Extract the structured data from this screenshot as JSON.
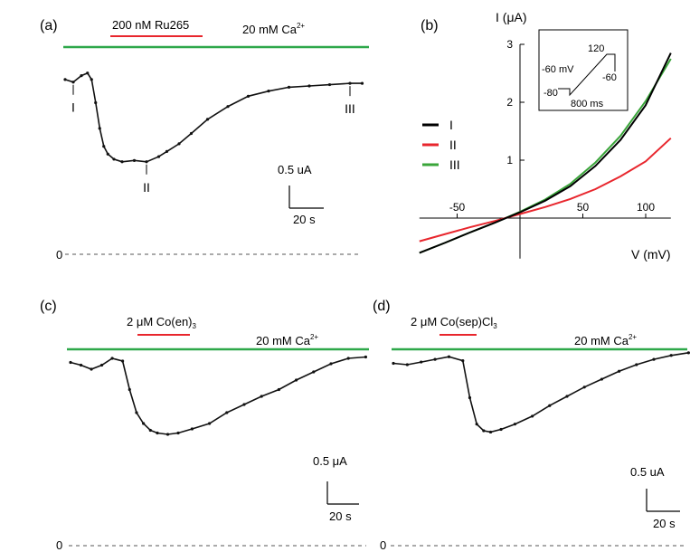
{
  "colors": {
    "trace": "#111111",
    "calcium_bar": "#2ea84a",
    "drug_bar": "#e8262d",
    "iv_I": "#000000",
    "iv_II": "#e8262d",
    "iv_III": "#3aa53a",
    "baseline": "#777777"
  },
  "panels": {
    "a": {
      "tag": "(a)",
      "drug_label": "200 nM Ru265",
      "ca_label": "20 mM Ca",
      "ca_sup": "2+",
      "markers": [
        "I",
        "II",
        "III"
      ],
      "scale_current": "0.5 uA",
      "scale_time": "20 s",
      "zero_label": "0"
    },
    "b": {
      "tag": "(b)",
      "ylabel": "I (μA)",
      "xlabel": "V (mV)",
      "legend": [
        "I",
        "II",
        "III"
      ],
      "inset": {
        "labels": [
          "120",
          "-60 mV",
          "-60",
          "-80",
          "800 ms"
        ]
      }
    },
    "c": {
      "tag": "(c)",
      "drug_label": "2 μM Co(en)",
      "drug_sub": "3",
      "ca_label": "20 mM Ca",
      "ca_sup": "2+",
      "scale_current": "0.5 μA",
      "scale_time": "20 s",
      "zero_label": "0"
    },
    "d": {
      "tag": "(d)",
      "drug_label": "2 μM Co(sep)Cl",
      "drug_sub": "3",
      "ca_label": "20 mM Ca",
      "ca_sup": "2+",
      "scale_current": "0.5 uA",
      "scale_time": "20 s",
      "zero_label": "0"
    }
  },
  "chart_data": [
    {
      "panel": "a",
      "type": "line",
      "x_unit": "s",
      "y_unit": "uA",
      "series": [
        {
          "x": [
            0,
            4,
            8,
            11,
            13,
            15,
            17,
            19,
            21,
            24,
            28,
            34,
            40,
            46,
            50,
            56,
            62,
            70,
            80,
            90,
            100,
            110,
            120,
            130,
            140,
            146
          ],
          "y": [
            1.36,
            1.34,
            1.39,
            1.41,
            1.36,
            1.18,
            0.98,
            0.84,
            0.78,
            0.74,
            0.72,
            0.73,
            0.72,
            0.76,
            0.8,
            0.86,
            0.94,
            1.05,
            1.15,
            1.23,
            1.27,
            1.3,
            1.31,
            1.32,
            1.33,
            1.33
          ]
        }
      ],
      "markers": [
        {
          "label": "I",
          "x": 4
        },
        {
          "label": "II",
          "x": 40
        },
        {
          "label": "III",
          "x": 140
        }
      ]
    },
    {
      "panel": "b",
      "type": "line",
      "x_unit": "mV",
      "y_unit": "μA",
      "xlim": [
        -80,
        120
      ],
      "ylim": [
        -0.7,
        3
      ],
      "xticks": [
        -50,
        50,
        100
      ],
      "yticks": [
        1,
        2,
        3
      ],
      "x": [
        -80,
        -60,
        -40,
        -20,
        0,
        20,
        40,
        60,
        80,
        100,
        120
      ],
      "series": [
        {
          "name": "I",
          "values": [
            -0.6,
            -0.43,
            -0.25,
            -0.08,
            0.1,
            0.3,
            0.55,
            0.9,
            1.35,
            1.95,
            2.85
          ]
        },
        {
          "name": "II",
          "values": [
            -0.4,
            -0.28,
            -0.16,
            -0.05,
            0.07,
            0.19,
            0.33,
            0.5,
            0.72,
            0.98,
            1.38
          ]
        },
        {
          "name": "III",
          "values": [
            -0.6,
            -0.43,
            -0.25,
            -0.08,
            0.11,
            0.32,
            0.59,
            0.96,
            1.42,
            2.02,
            2.75
          ]
        }
      ]
    },
    {
      "panel": "c",
      "type": "line",
      "x_unit": "s",
      "y_unit": "μA",
      "series": [
        {
          "x": [
            0,
            6,
            12,
            18,
            24,
            30,
            34,
            38,
            42,
            46,
            50,
            56,
            62,
            70,
            80,
            90,
            100,
            110,
            120,
            130,
            140,
            150,
            160,
            170
          ],
          "y": [
            1.35,
            1.33,
            1.3,
            1.33,
            1.38,
            1.36,
            1.15,
            0.98,
            0.9,
            0.85,
            0.83,
            0.82,
            0.83,
            0.86,
            0.9,
            0.98,
            1.04,
            1.1,
            1.15,
            1.22,
            1.28,
            1.34,
            1.38,
            1.39
          ]
        }
      ]
    },
    {
      "panel": "d",
      "type": "line",
      "x_unit": "s",
      "y_unit": "uA",
      "series": [
        {
          "x": [
            0,
            8,
            16,
            24,
            32,
            40,
            44,
            48,
            52,
            56,
            62,
            70,
            80,
            90,
            100,
            110,
            120,
            130,
            140,
            150,
            160,
            170
          ],
          "y": [
            1.38,
            1.37,
            1.39,
            1.41,
            1.43,
            1.4,
            1.12,
            0.92,
            0.87,
            0.86,
            0.88,
            0.92,
            0.98,
            1.06,
            1.13,
            1.2,
            1.26,
            1.32,
            1.37,
            1.41,
            1.44,
            1.46
          ]
        }
      ]
    }
  ]
}
